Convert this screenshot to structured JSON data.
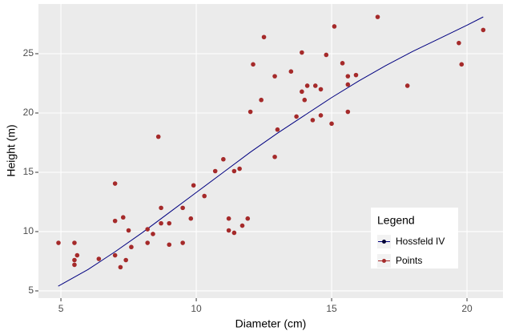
{
  "chart_data": {
    "type": "scatter",
    "xlabel": "Diameter (cm)",
    "ylabel": "Height (m)",
    "legend_title": "Legend",
    "legend_position": "bottom-right",
    "grid": true,
    "xlim": [
      4.17,
      21.33
    ],
    "ylim": [
      4.39,
      29.19
    ],
    "xticks": [
      5,
      10,
      15,
      20
    ],
    "yticks": [
      5,
      10,
      15,
      20,
      25
    ],
    "series": [
      {
        "name": "Hossfeld IV",
        "type": "line",
        "color": "#000080",
        "x": [
          4.9,
          6,
          7,
          8,
          9,
          10,
          11,
          12,
          13,
          14,
          15,
          16,
          17,
          18,
          19,
          20,
          20.6
        ],
        "values": [
          5.4,
          6.8,
          8.3,
          9.9,
          11.6,
          13.3,
          15.0,
          16.7,
          18.3,
          19.8,
          21.3,
          22.7,
          24.0,
          25.2,
          26.3,
          27.4,
          28.1
        ]
      },
      {
        "name": "Points",
        "type": "points",
        "color": "#a52a2a",
        "x": [
          4.91,
          5.5,
          5.5,
          5.5,
          5.6,
          6.4,
          7.0,
          7.0,
          7.0,
          7.2,
          7.3,
          7.4,
          7.5,
          7.6,
          8.2,
          8.2,
          8.4,
          8.6,
          8.7,
          8.7,
          9.0,
          9.0,
          9.5,
          9.5,
          9.8,
          9.9,
          10.3,
          10.7,
          11.0,
          11.2,
          11.2,
          11.4,
          11.4,
          11.6,
          11.7,
          11.9,
          12.0,
          12.1,
          12.4,
          12.5,
          12.9,
          12.9,
          13.0,
          13.5,
          13.7,
          13.9,
          13.9,
          14.0,
          14.1,
          14.3,
          14.4,
          14.6,
          14.6,
          14.8,
          15.0,
          15.1,
          15.4,
          15.6,
          15.6,
          15.6,
          15.9,
          16.7,
          17.8,
          19.7,
          19.8,
          20.6
        ],
        "values": [
          9.05,
          9.05,
          7.6,
          7.2,
          8.0,
          7.7,
          14.05,
          10.9,
          8.0,
          7.0,
          11.2,
          7.6,
          10.1,
          8.7,
          10.2,
          9.05,
          9.8,
          18.0,
          12.0,
          10.7,
          10.7,
          8.9,
          12.0,
          9.05,
          11.1,
          13.9,
          13.0,
          15.1,
          16.1,
          11.1,
          10.1,
          15.1,
          9.9,
          15.3,
          10.5,
          11.1,
          20.1,
          24.1,
          21.1,
          26.4,
          16.3,
          23.1,
          18.6,
          23.5,
          19.7,
          25.1,
          21.8,
          21.1,
          22.3,
          19.4,
          22.3,
          22.0,
          19.8,
          24.9,
          19.1,
          27.3,
          24.2,
          23.1,
          22.4,
          20.1,
          23.2,
          28.1,
          22.3,
          25.9,
          24.1,
          27.0
        ]
      }
    ]
  }
}
